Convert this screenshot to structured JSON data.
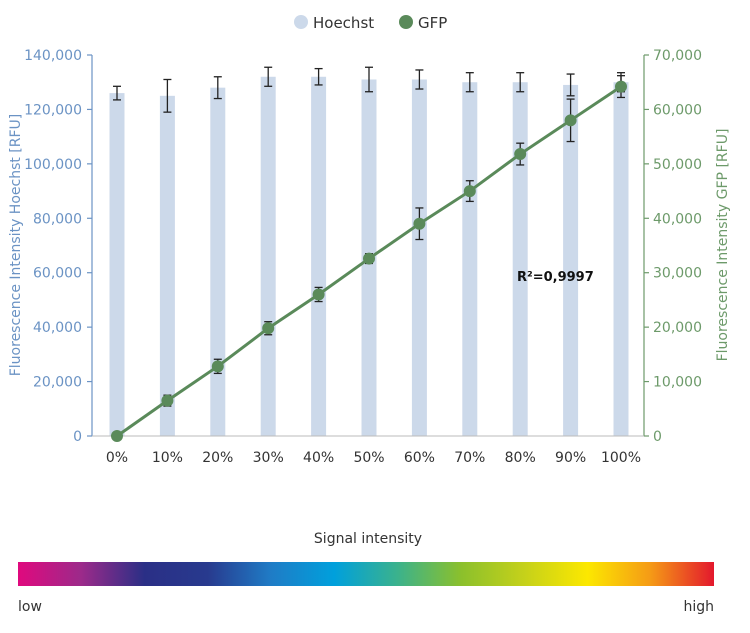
{
  "chart_data": {
    "type": "bar+line",
    "categories": [
      "0%",
      "10%",
      "20%",
      "30%",
      "40%",
      "50%",
      "60%",
      "70%",
      "80%",
      "90%",
      "100%"
    ],
    "legend": {
      "position": "top-center",
      "items": [
        "Hoechst",
        "GFP"
      ]
    },
    "y_left": {
      "label": "Fluorescence Intensity Hoechst [RFU]",
      "min": 0,
      "max": 140000,
      "ticks": [
        "0",
        "20,000",
        "40,000",
        "60,000",
        "80,000",
        "100,000",
        "120,000",
        "140,000"
      ]
    },
    "y_right": {
      "label": "Fluorescence Intensity GFP [RFU]",
      "min": 0,
      "max": 70000,
      "ticks": [
        "0",
        "10,000",
        "20,000",
        "30,000",
        "40,000",
        "50,000",
        "60,000",
        "70,000"
      ]
    },
    "grid": false,
    "series": [
      {
        "name": "Hoechst",
        "kind": "bar",
        "axis": "left",
        "color": "#ccd9ea",
        "values": [
          126000,
          125000,
          128000,
          132000,
          132000,
          131000,
          131000,
          130000,
          130000,
          129000,
          130000
        ],
        "errors": [
          2500,
          6000,
          4000,
          3500,
          3000,
          4500,
          3500,
          3500,
          3500,
          4000,
          3500
        ]
      },
      {
        "name": "GFP",
        "kind": "line",
        "axis": "right",
        "color": "#5a8a5a",
        "values": [
          0,
          6500,
          12800,
          19800,
          26000,
          32600,
          39000,
          45000,
          51800,
          58000,
          64200
        ],
        "errors": [
          400,
          1000,
          1300,
          1200,
          1300,
          900,
          2900,
          1900,
          2000,
          3900,
          2000
        ]
      }
    ],
    "annotation": "R²=0,9997",
    "colorbar": {
      "title": "Signal intensity",
      "low_label": "low",
      "high_label": "high",
      "stops": [
        "#e0097e",
        "#9c2a8a",
        "#2a2f86",
        "#283a8e",
        "#1f7cc6",
        "#00a0dc",
        "#3bb28c",
        "#8bc02c",
        "#c5d11a",
        "#fce800",
        "#f59a16",
        "#e3182d"
      ]
    }
  }
}
